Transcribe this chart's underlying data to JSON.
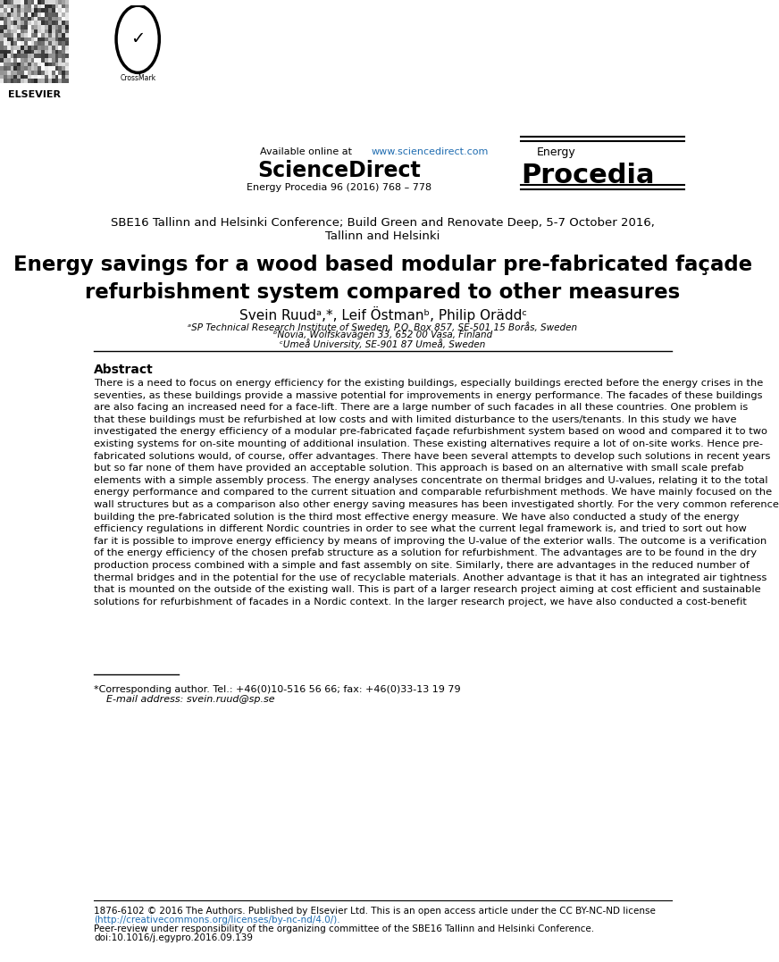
{
  "bg_color": "#ffffff",
  "header": {
    "available_online": "Available online at ",
    "url": "www.sciencedirect.com",
    "sciencedirect": "ScienceDirect",
    "journal_line": "Energy Procedia 96 (2016) 768 – 778",
    "energy_label": "Energy",
    "procedia_label": "Procedia"
  },
  "conference": "SBE16 Tallinn and Helsinki Conference; Build Green and Renovate Deep, 5-7 October 2016,\nTallinn and Helsinki",
  "title": "Energy savings for a wood based modular pre-fabricated façade\nrefurbishment system compared to other measures",
  "authors": "Svein Ruud",
  "authors_superscript": "a,*",
  "authors_mid": ", Leif Östman",
  "authors_superscript2": "b",
  "authors_end": ", Philip Orädd",
  "authors_superscript3": "c",
  "affil1": "ᵃSP Technical Research Institute of Sweden, P.O. Box 857, SE-501 15 Borås, Sweden",
  "affil2": "ᵇNovia, Wolfskavägen 33, 652 00 Vasa, Finland",
  "affil3": "ᶜUmeå University, SE-901 87 Umeå, Sweden",
  "abstract_title": "Abstract",
  "abstract_text": "There is a need to focus on energy efficiency for the existing buildings, especially buildings erected before the energy crises in the\nseventies, as these buildings provide a massive potential for improvements in energy performance. The facades of these buildings\nare also facing an increased need for a face-lift. There are a large number of such facades in all these countries. One problem is\nthat these buildings must be refurbished at low costs and with limited disturbance to the users/tenants. In this study we have\ninvestigated the energy efficiency of a modular pre-fabricated façade refurbishment system based on wood and compared it to two\nexisting systems for on-site mounting of additional insulation. These existing alternatives require a lot of on-site works. Hence pre-\nfabricated solutions would, of course, offer advantages. There have been several attempts to develop such solutions in recent years\nbut so far none of them have provided an acceptable solution. This approach is based on an alternative with small scale prefab\nelements with a simple assembly process. The energy analyses concentrate on thermal bridges and U-values, relating it to the total\nenergy performance and compared to the current situation and comparable refurbishment methods. We have mainly focused on the\nwall structures but as a comparison also other energy saving measures has been investigated shortly. For the very common reference\nbuilding the pre-fabricated solution is the third most effective energy measure. We have also conducted a study of the energy\nefficiency regulations in different Nordic countries in order to see what the current legal framework is, and tried to sort out how\nfar it is possible to improve energy efficiency by means of improving the U-value of the exterior walls. The outcome is a verification\nof the energy efficiency of the chosen prefab structure as a solution for refurbishment. The advantages are to be found in the dry\nproduction process combined with a simple and fast assembly on site. Similarly, there are advantages in the reduced number of\nthermal bridges and in the potential for the use of recyclable materials. Another advantage is that it has an integrated air tightness\nthat is mounted on the outside of the existing wall. This is part of a larger research project aiming at cost efficient and sustainable\nsolutions for refurbishment of facades in a Nordic context. In the larger research project, we have also conducted a cost-benefit",
  "footnote_line": "*Corresponding author. Tel.: +46(0)10-516 56 66; fax: +46(0)33-13 19 79",
  "footnote_email": "    E-mail address: svein.ruud@sp.se",
  "bottom_license": "1876-6102 © 2016 The Authors. Published by Elsevier Ltd. This is an open access article under the CC BY-NC-ND license",
  "bottom_url": "(http://creativecommons.org/licenses/by-nc-nd/4.0/).",
  "bottom_peer": "Peer-review under responsibility of the organizing committee of the SBE16 Tallinn and Helsinki Conference.",
  "bottom_doi": "doi:10.1016/j.egypro.2016.09.139",
  "link_color": "#1f6cb0",
  "text_color": "#000000",
  "gray_color": "#555555"
}
